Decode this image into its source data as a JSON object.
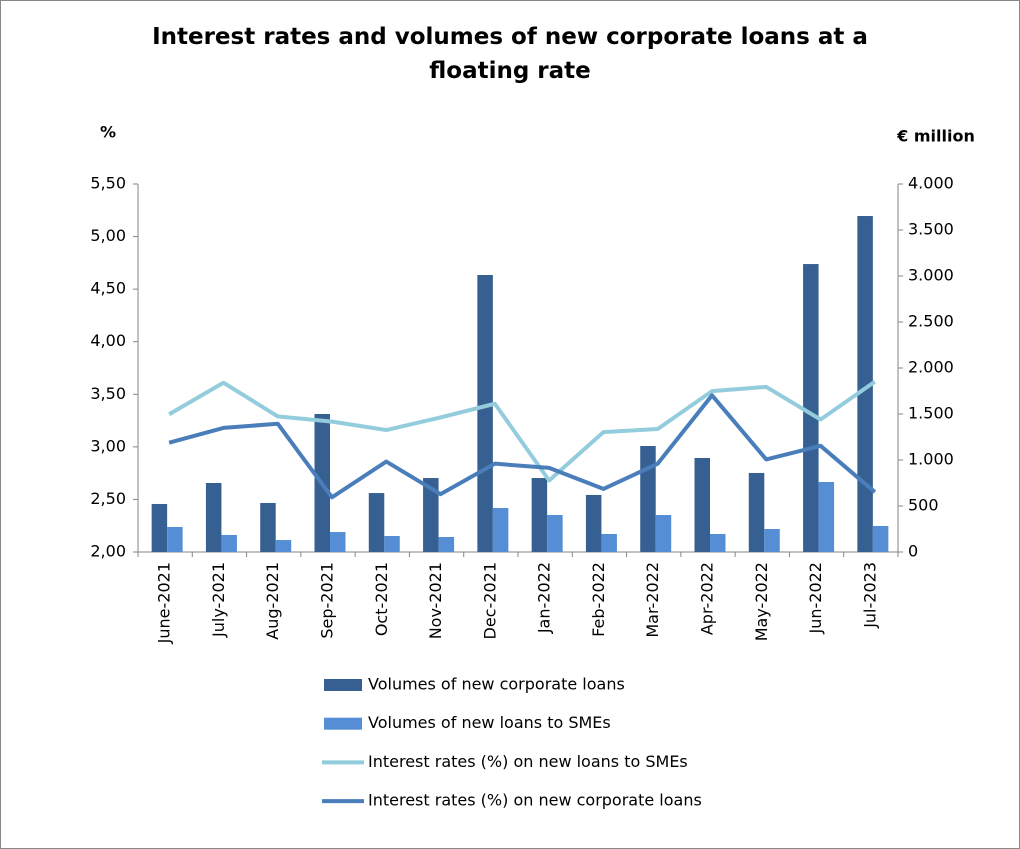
{
  "chart_data": {
    "type": "bar",
    "title": "Interest rates and volumes of new corporate loans at a floating rate",
    "y_label": "%",
    "y2_label": "€ million",
    "categories": [
      "June-2021",
      "July-2021",
      "Aug-2021",
      "Sep-2021",
      "Oct-2021",
      "Nov-2021",
      "Dec-2021",
      "Jan-2022",
      "Feb-2022",
      "Mar-2022",
      "Apr-2022",
      "May-2022",
      "Jun-2022",
      "Jul-2023"
    ],
    "series": [
      {
        "name": "Volumes of new corporate loans",
        "type": "bar",
        "axis": "y2",
        "color": "#376092",
        "values": [
          522,
          750,
          533,
          1500,
          641,
          804,
          3011,
          804,
          620,
          1152,
          1022,
          859,
          3130,
          3652
        ]
      },
      {
        "name": "Volumes of new loans to SMEs",
        "type": "bar",
        "axis": "y2",
        "color": "#558ed5",
        "values": [
          272,
          185,
          130,
          217,
          174,
          163,
          478,
          402,
          196,
          402,
          196,
          250,
          761,
          283
        ]
      },
      {
        "name": "Interest rates (%) on new loans to SMEs",
        "type": "line",
        "color": "#93cddd",
        "values": [
          3.31,
          3.61,
          3.29,
          3.24,
          3.16,
          3.28,
          3.41,
          2.68,
          3.14,
          3.17,
          3.53,
          3.57,
          3.26,
          3.62
        ]
      },
      {
        "name": "Interest rates (%) on new corporate loans",
        "type": "line",
        "color": "#4a7ebb",
        "values": [
          3.04,
          3.18,
          3.22,
          2.52,
          2.86,
          2.55,
          2.84,
          2.8,
          2.6,
          2.84,
          3.49,
          2.88,
          3.01,
          2.57
        ]
      }
    ],
    "ylim": [
      2,
      5.5
    ],
    "yticks": [
      {
        "value": 2,
        "label": "2,00"
      },
      {
        "value": 2.5,
        "label": "2,50"
      },
      {
        "value": 3,
        "label": "3,00"
      },
      {
        "value": 3.5,
        "label": "3,50"
      },
      {
        "value": 4,
        "label": "4,00"
      },
      {
        "value": 4.5,
        "label": "4,50"
      },
      {
        "value": 5,
        "label": "5,00"
      },
      {
        "value": 5.5,
        "label": "5,50"
      }
    ],
    "y2lim": [
      0,
      4000
    ],
    "y2ticks": [
      0,
      500,
      {
        "value": 1000,
        "label": "1.000"
      },
      {
        "value": 1500,
        "label": "1.500"
      },
      {
        "value": 2000,
        "label": "2.000"
      },
      {
        "value": 2500,
        "label": "2.500"
      },
      {
        "value": 3000,
        "label": "3.000"
      },
      {
        "value": 3500,
        "label": "3.500"
      },
      {
        "value": 4000,
        "label": "4.000"
      }
    ],
    "legend": "bottom"
  }
}
